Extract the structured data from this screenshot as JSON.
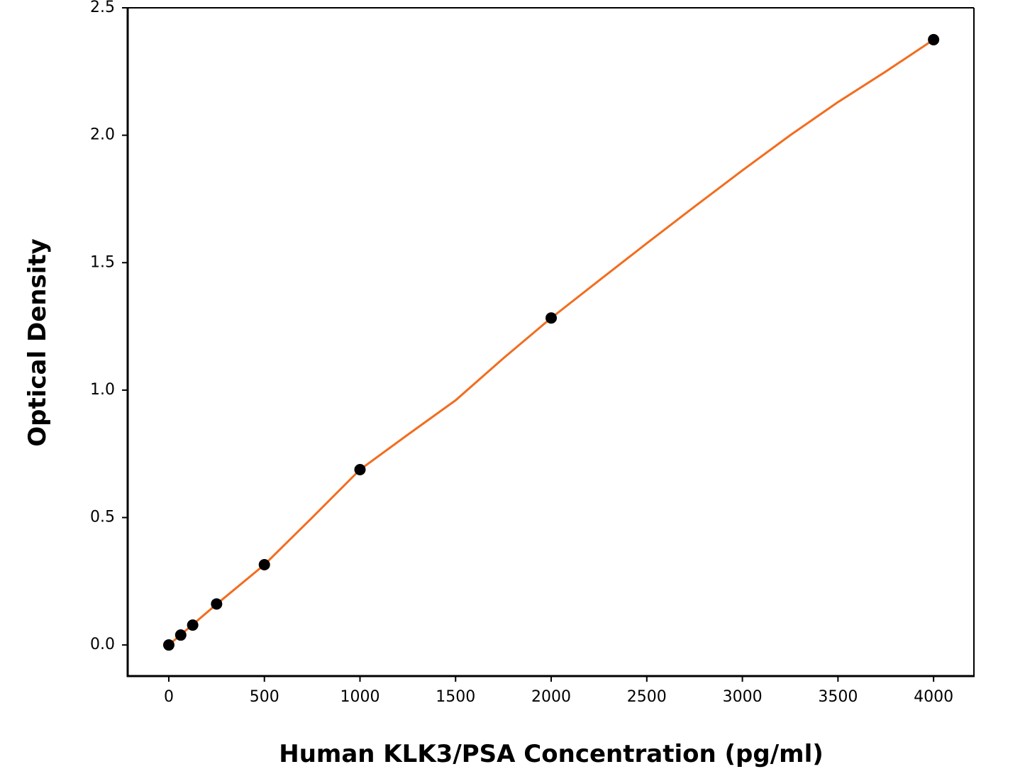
{
  "chart_data": {
    "type": "scatter",
    "x_label": "Human KLK3/PSA Concentration (pg/ml)",
    "y_label": "Optical Density",
    "xlim": [
      -215,
      4211
    ],
    "ylim": [
      -0.122,
      2.5
    ],
    "xticks": [
      0,
      500,
      1000,
      1500,
      2000,
      2500,
      3000,
      3500,
      4000
    ],
    "yticks": [
      {
        "value": 0,
        "label": "0.0"
      },
      {
        "value": 0.5,
        "label": "0.5"
      },
      {
        "value": 1,
        "label": "1.0"
      },
      {
        "value": 1.5,
        "label": "1.5"
      },
      {
        "value": 2,
        "label": "2.0"
      },
      {
        "value": 2.5,
        "label": "2.5"
      }
    ],
    "grid": false,
    "series": [
      {
        "type": "line",
        "color": "#f26d1f",
        "x": [
          0,
          250,
          500,
          750,
          1000,
          1250,
          1500,
          1750,
          2000,
          2250,
          2500,
          2750,
          3000,
          3250,
          3500,
          3750,
          4000
        ],
        "values": [
          0,
          0.16,
          0.315,
          0.5,
          0.688,
          0.825,
          0.96,
          1.125,
          1.283,
          1.43,
          1.576,
          1.72,
          1.862,
          2.0,
          2.13,
          2.25,
          2.375
        ]
      },
      {
        "type": "scatter",
        "color": "#000000",
        "x": [
          0,
          62.5,
          125,
          250,
          500,
          1000,
          2000,
          4000
        ],
        "values": [
          0,
          0.039,
          0.078,
          0.161,
          0.315,
          0.688,
          1.283,
          2.375
        ]
      }
    ]
  }
}
